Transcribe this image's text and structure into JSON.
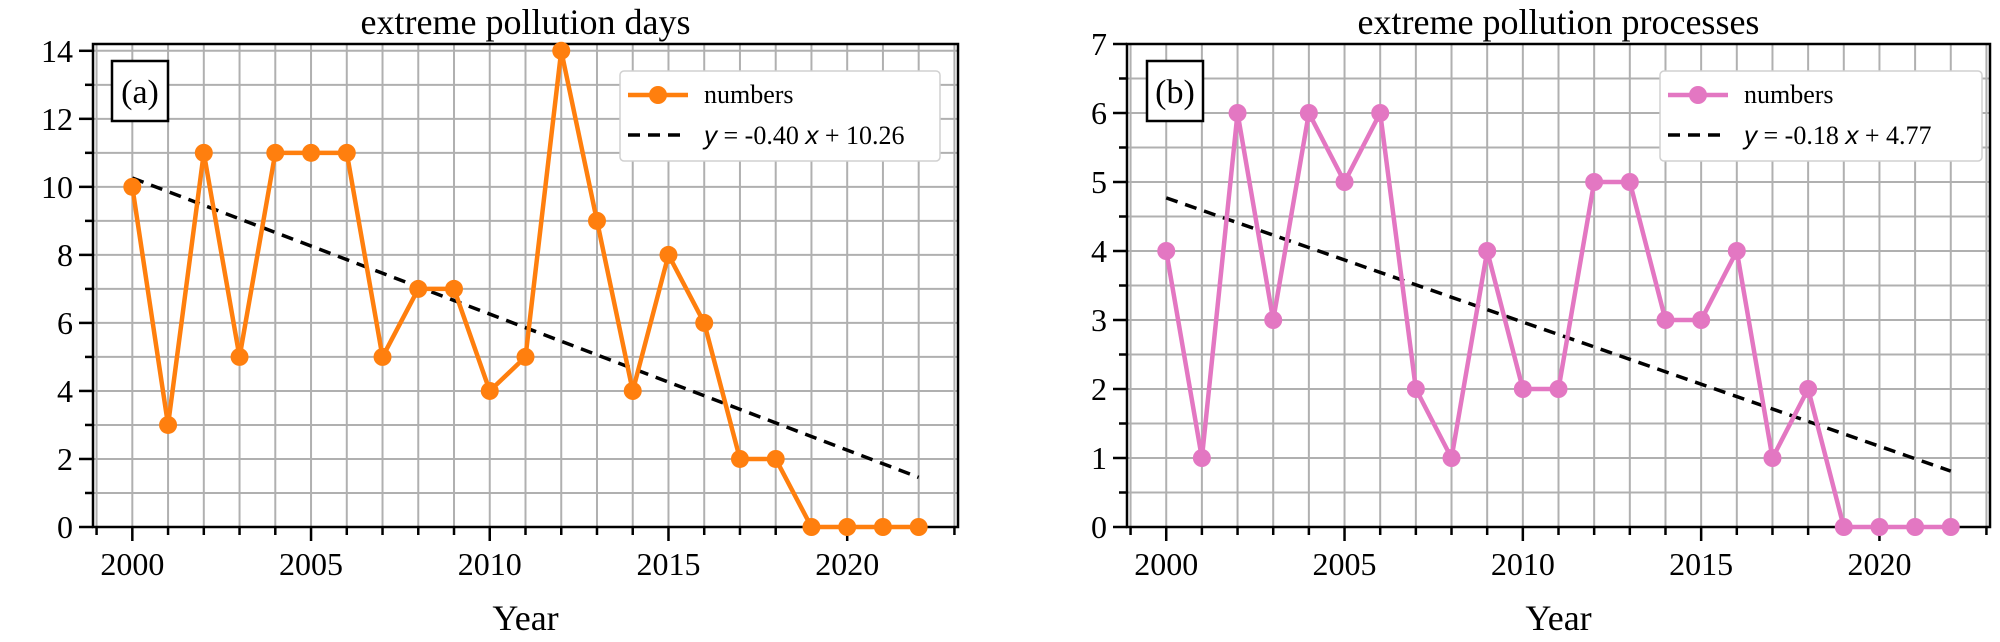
{
  "chart_data": [
    {
      "type": "line",
      "panel_label": "(a)",
      "title": "extreme pollution days",
      "xlabel": "Year",
      "ylabel": "",
      "xlim": [
        1998.9,
        2023.1
      ],
      "ylim": [
        0,
        14.2
      ],
      "xticks": [
        2000,
        2005,
        2010,
        2015,
        2020
      ],
      "yticks": [
        0,
        2,
        4,
        6,
        8,
        10,
        12,
        14
      ],
      "grid": true,
      "legend_position": "top-right",
      "color": "#ff7f0e",
      "series": [
        {
          "name": "numbers",
          "x": [
            2000,
            2001,
            2002,
            2003,
            2004,
            2005,
            2006,
            2007,
            2008,
            2009,
            2010,
            2011,
            2012,
            2013,
            2014,
            2015,
            2016,
            2017,
            2018,
            2019,
            2020,
            2021,
            2022
          ],
          "values": [
            10,
            3,
            11,
            5,
            11,
            11,
            11,
            5,
            7,
            7,
            4,
            5,
            14,
            9,
            4,
            8,
            6,
            2,
            2,
            0,
            0,
            0,
            0
          ]
        }
      ],
      "trend": {
        "slope": -0.4,
        "intercept": 10.26,
        "y_prefix": "y",
        "x_symbol": "x",
        "equation": " = -0.40 ",
        "equation_tail": " + 10.26",
        "x_start": 2000,
        "x_end": 2022
      }
    },
    {
      "type": "line",
      "panel_label": "(b)",
      "title": "extreme pollution processes",
      "xlabel": "Year",
      "ylabel": "",
      "xlim": [
        1998.9,
        2023.1
      ],
      "ylim": [
        0,
        7
      ],
      "xticks": [
        2000,
        2005,
        2010,
        2015,
        2020
      ],
      "yticks": [
        0,
        1,
        2,
        3,
        4,
        5,
        6,
        7
      ],
      "grid": true,
      "legend_position": "top-right",
      "color": "#e377c2",
      "series": [
        {
          "name": "numbers",
          "x": [
            2000,
            2001,
            2002,
            2003,
            2004,
            2005,
            2006,
            2007,
            2008,
            2009,
            2010,
            2011,
            2012,
            2013,
            2014,
            2015,
            2016,
            2017,
            2018,
            2019,
            2020,
            2021,
            2022
          ],
          "values": [
            4,
            1,
            6,
            3,
            6,
            5,
            6,
            2,
            1,
            4,
            2,
            2,
            5,
            5,
            3,
            3,
            4,
            1,
            2,
            0,
            0,
            0,
            0
          ]
        }
      ],
      "trend": {
        "slope": -0.18,
        "intercept": 4.77,
        "y_prefix": "y",
        "x_symbol": "x",
        "equation": " = -0.18 ",
        "equation_tail": " + 4.77",
        "x_start": 2000,
        "x_end": 2022
      }
    }
  ]
}
